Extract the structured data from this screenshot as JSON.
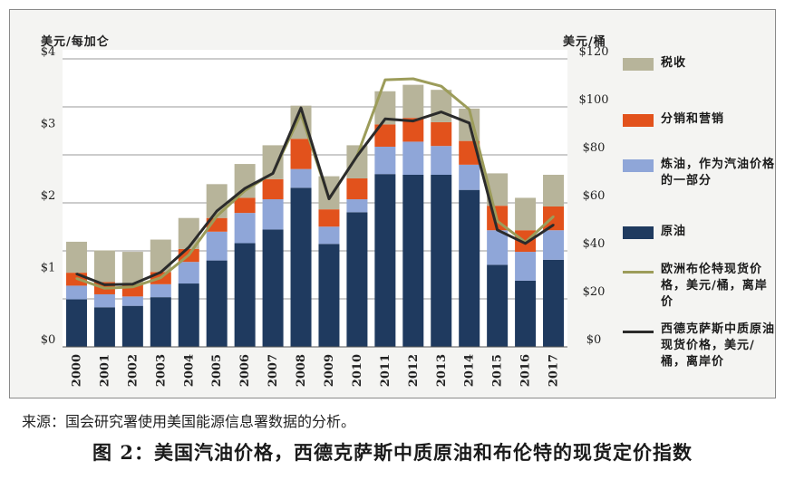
{
  "chart_data": {
    "type": "bar",
    "stacked": true,
    "categories": [
      "2000",
      "2001",
      "2002",
      "2003",
      "2004",
      "2005",
      "2006",
      "2007",
      "2008",
      "2009",
      "2010",
      "2011",
      "2012",
      "2013",
      "2014",
      "2015",
      "2016",
      "2017"
    ],
    "left_axis": {
      "label": "美元/每加仑",
      "ylim": [
        0,
        4
      ],
      "ticks": [
        0,
        1,
        2,
        3,
        4
      ],
      "tick_labels": [
        "$0",
        "$1",
        "$2",
        "$3",
        "$4"
      ]
    },
    "right_axis": {
      "label": "美元/桶",
      "ylim": [
        0,
        120
      ],
      "ticks": [
        0,
        20,
        40,
        60,
        80,
        100,
        120
      ],
      "tick_labels": [
        "$0",
        "$20",
        "$40",
        "$60",
        "$80",
        "$100",
        "$120"
      ]
    },
    "grid": true,
    "series": [
      {
        "name": "原油",
        "color": "#1f3a5f",
        "axis": "left",
        "values": [
          0.66,
          0.55,
          0.57,
          0.69,
          0.88,
          1.2,
          1.44,
          1.63,
          2.21,
          1.43,
          1.87,
          2.4,
          2.39,
          2.39,
          2.18,
          1.14,
          0.92,
          1.21
        ]
      },
      {
        "name": "炼油，作为汽油价格的一部分",
        "color": "#8fa6d8",
        "axis": "left",
        "values": [
          0.19,
          0.18,
          0.13,
          0.18,
          0.3,
          0.4,
          0.42,
          0.42,
          0.26,
          0.24,
          0.18,
          0.38,
          0.46,
          0.4,
          0.35,
          0.48,
          0.4,
          0.41
        ]
      },
      {
        "name": "分销和营销",
        "color": "#e2521c",
        "axis": "left",
        "values": [
          0.18,
          0.17,
          0.17,
          0.17,
          0.18,
          0.19,
          0.21,
          0.28,
          0.42,
          0.24,
          0.29,
          0.31,
          0.33,
          0.33,
          0.33,
          0.34,
          0.3,
          0.33
        ]
      },
      {
        "name": "税收",
        "color": "#b7b49a",
        "axis": "left",
        "values": [
          0.43,
          0.44,
          0.45,
          0.45,
          0.43,
          0.47,
          0.47,
          0.47,
          0.46,
          0.46,
          0.46,
          0.46,
          0.46,
          0.45,
          0.45,
          0.45,
          0.45,
          0.44
        ]
      }
    ],
    "lines": [
      {
        "name": "欧洲布伦特现货价格，美元/桶，离岸价",
        "color": "#9c9c5a",
        "axis": "right",
        "values": [
          28.5,
          24.4,
          25.0,
          28.8,
          38.3,
          54.5,
          65.1,
          72.4,
          97.0,
          61.7,
          79.6,
          111.3,
          111.7,
          108.6,
          98.9,
          52.4,
          43.6,
          54.3
        ]
      },
      {
        "name": "西德克萨斯中质原油现货价格，美元/桶，离岸价",
        "color": "#2b2b2b",
        "axis": "right",
        "values": [
          30.4,
          25.9,
          26.1,
          31.1,
          41.5,
          56.6,
          66.0,
          72.3,
          99.6,
          61.7,
          79.5,
          95.0,
          94.1,
          97.9,
          93.3,
          48.7,
          43.1,
          50.8
        ]
      }
    ]
  },
  "source_text": "来源：国会研究署使用美国能源信息署数据的分析。",
  "caption": "图 2：美国汽油价格，西德克萨斯中质原油和布伦特的现货定价指数"
}
